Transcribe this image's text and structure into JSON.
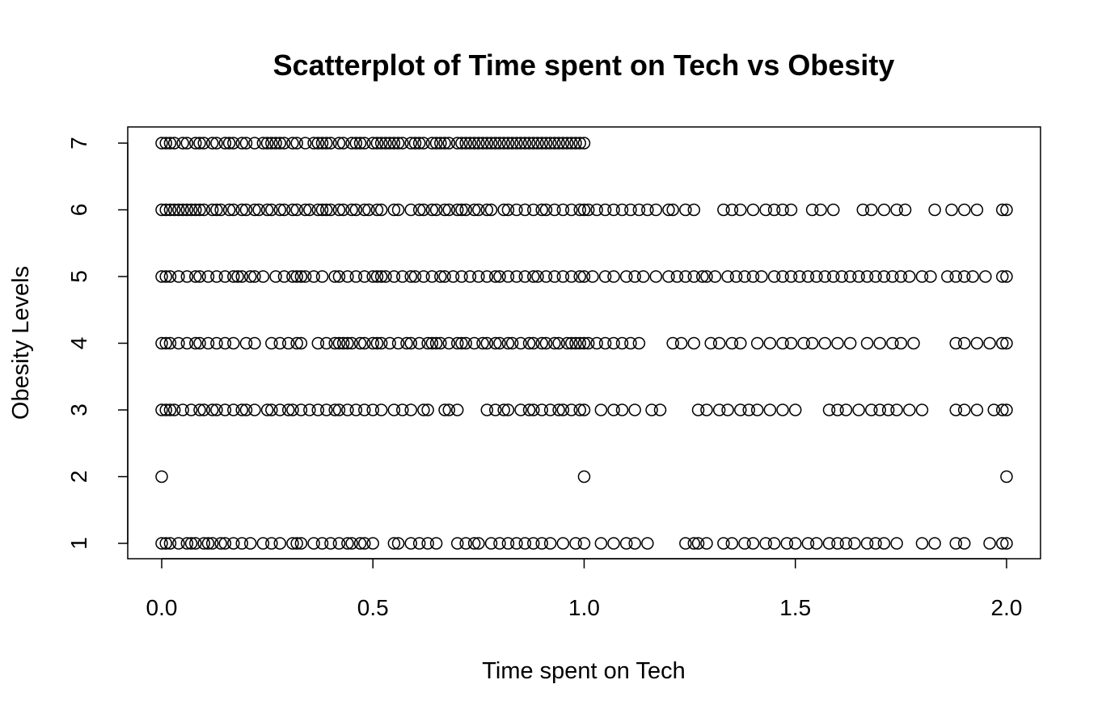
{
  "chart_data": {
    "type": "scatter",
    "title": "Scatterplot of Time spent on Tech vs Obesity",
    "xlabel": "Time spent on Tech",
    "ylabel": "Obesity Levels",
    "xlim": [
      0,
      2
    ],
    "ylim": [
      1,
      7
    ],
    "x_ticks": [
      "0.0",
      "0.5",
      "1.0",
      "1.5",
      "2.0"
    ],
    "x_tick_values": [
      0,
      0.5,
      1,
      1.5,
      2
    ],
    "y_ticks": [
      "1",
      "2",
      "3",
      "4",
      "5",
      "6",
      "7"
    ],
    "y_tick_values": [
      1,
      2,
      3,
      4,
      5,
      6,
      7
    ],
    "grid": false,
    "legend": "none",
    "marker": "open-circle",
    "series": [
      {
        "y": 7,
        "x": [
          0.0,
          0.01,
          0.02,
          0.03,
          0.05,
          0.06,
          0.08,
          0.09,
          0.1,
          0.12,
          0.13,
          0.15,
          0.16,
          0.17,
          0.19,
          0.2,
          0.22,
          0.24,
          0.25,
          0.26,
          0.27,
          0.28,
          0.29,
          0.31,
          0.32,
          0.34,
          0.36,
          0.37,
          0.38,
          0.39,
          0.4,
          0.42,
          0.43,
          0.45,
          0.46,
          0.47,
          0.48,
          0.5,
          0.51,
          0.52,
          0.53,
          0.54,
          0.55,
          0.56,
          0.57,
          0.59,
          0.6,
          0.61,
          0.62,
          0.64,
          0.65,
          0.66,
          0.67,
          0.68,
          0.7,
          0.71,
          0.72,
          0.73,
          0.74,
          0.75,
          0.76,
          0.77,
          0.78,
          0.79,
          0.8,
          0.81,
          0.82,
          0.83,
          0.84,
          0.85,
          0.86,
          0.87,
          0.88,
          0.89,
          0.9,
          0.91,
          0.92,
          0.93,
          0.94,
          0.95,
          0.96,
          0.97,
          0.98,
          0.99,
          1.0
        ]
      },
      {
        "y": 6,
        "x": [
          0.0,
          0.01,
          0.02,
          0.03,
          0.04,
          0.05,
          0.06,
          0.07,
          0.08,
          0.09,
          0.1,
          0.12,
          0.13,
          0.14,
          0.16,
          0.17,
          0.19,
          0.2,
          0.22,
          0.23,
          0.25,
          0.26,
          0.28,
          0.29,
          0.31,
          0.32,
          0.34,
          0.35,
          0.37,
          0.38,
          0.39,
          0.4,
          0.42,
          0.43,
          0.45,
          0.46,
          0.48,
          0.49,
          0.51,
          0.52,
          0.55,
          0.56,
          0.59,
          0.61,
          0.62,
          0.64,
          0.65,
          0.67,
          0.68,
          0.7,
          0.71,
          0.72,
          0.74,
          0.75,
          0.77,
          0.78,
          0.81,
          0.82,
          0.84,
          0.86,
          0.88,
          0.9,
          0.91,
          0.93,
          0.95,
          0.97,
          0.99,
          1.0,
          1.01,
          1.03,
          1.05,
          1.07,
          1.09,
          1.11,
          1.13,
          1.15,
          1.17,
          1.2,
          1.21,
          1.24,
          1.26,
          1.33,
          1.35,
          1.37,
          1.4,
          1.43,
          1.45,
          1.47,
          1.49,
          1.54,
          1.56,
          1.59,
          1.66,
          1.68,
          1.71,
          1.74,
          1.76,
          1.83,
          1.87,
          1.9,
          1.93,
          1.99,
          2.0
        ]
      },
      {
        "y": 5,
        "x": [
          0.0,
          0.01,
          0.02,
          0.04,
          0.06,
          0.08,
          0.09,
          0.11,
          0.13,
          0.15,
          0.17,
          0.18,
          0.19,
          0.21,
          0.22,
          0.24,
          0.27,
          0.29,
          0.31,
          0.32,
          0.33,
          0.34,
          0.36,
          0.38,
          0.41,
          0.42,
          0.44,
          0.46,
          0.48,
          0.5,
          0.51,
          0.52,
          0.53,
          0.55,
          0.57,
          0.59,
          0.6,
          0.62,
          0.64,
          0.66,
          0.67,
          0.69,
          0.71,
          0.73,
          0.75,
          0.77,
          0.79,
          0.8,
          0.82,
          0.84,
          0.86,
          0.88,
          0.89,
          0.91,
          0.93,
          0.95,
          0.97,
          0.99,
          1.0,
          1.02,
          1.05,
          1.07,
          1.1,
          1.12,
          1.14,
          1.17,
          1.2,
          1.22,
          1.24,
          1.26,
          1.28,
          1.29,
          1.31,
          1.34,
          1.36,
          1.38,
          1.4,
          1.42,
          1.45,
          1.47,
          1.49,
          1.51,
          1.53,
          1.55,
          1.57,
          1.59,
          1.61,
          1.63,
          1.65,
          1.67,
          1.69,
          1.71,
          1.73,
          1.75,
          1.77,
          1.8,
          1.82,
          1.86,
          1.88,
          1.9,
          1.92,
          1.95,
          1.99,
          2.0
        ]
      },
      {
        "y": 4,
        "x": [
          0.0,
          0.01,
          0.02,
          0.04,
          0.06,
          0.08,
          0.09,
          0.11,
          0.13,
          0.15,
          0.17,
          0.2,
          0.22,
          0.26,
          0.28,
          0.3,
          0.32,
          0.33,
          0.37,
          0.39,
          0.41,
          0.42,
          0.43,
          0.44,
          0.45,
          0.47,
          0.48,
          0.5,
          0.51,
          0.52,
          0.54,
          0.56,
          0.58,
          0.59,
          0.61,
          0.63,
          0.64,
          0.65,
          0.66,
          0.68,
          0.7,
          0.71,
          0.72,
          0.74,
          0.76,
          0.77,
          0.79,
          0.8,
          0.82,
          0.83,
          0.85,
          0.87,
          0.88,
          0.9,
          0.91,
          0.93,
          0.94,
          0.96,
          0.97,
          0.98,
          0.99,
          1.0,
          1.01,
          1.03,
          1.05,
          1.07,
          1.09,
          1.11,
          1.13,
          1.21,
          1.23,
          1.26,
          1.3,
          1.32,
          1.35,
          1.37,
          1.41,
          1.44,
          1.47,
          1.49,
          1.52,
          1.54,
          1.57,
          1.6,
          1.63,
          1.67,
          1.7,
          1.73,
          1.75,
          1.78,
          1.88,
          1.9,
          1.93,
          1.96,
          1.99,
          2.0
        ]
      },
      {
        "y": 3,
        "x": [
          0.0,
          0.01,
          0.02,
          0.03,
          0.05,
          0.07,
          0.09,
          0.1,
          0.12,
          0.13,
          0.15,
          0.17,
          0.19,
          0.2,
          0.22,
          0.25,
          0.26,
          0.28,
          0.3,
          0.31,
          0.33,
          0.35,
          0.37,
          0.39,
          0.41,
          0.42,
          0.44,
          0.46,
          0.48,
          0.5,
          0.52,
          0.55,
          0.57,
          0.59,
          0.62,
          0.63,
          0.67,
          0.68,
          0.7,
          0.77,
          0.79,
          0.81,
          0.82,
          0.85,
          0.87,
          0.88,
          0.9,
          0.92,
          0.94,
          0.95,
          0.97,
          0.99,
          1.0,
          1.04,
          1.07,
          1.09,
          1.12,
          1.16,
          1.18,
          1.27,
          1.29,
          1.32,
          1.34,
          1.37,
          1.39,
          1.41,
          1.44,
          1.47,
          1.5,
          1.58,
          1.6,
          1.62,
          1.65,
          1.68,
          1.7,
          1.72,
          1.74,
          1.77,
          1.8,
          1.88,
          1.9,
          1.93,
          1.97,
          1.99,
          2.0
        ]
      },
      {
        "y": 2,
        "x": [
          0.0,
          1.0,
          2.0
        ]
      },
      {
        "y": 1,
        "x": [
          0.0,
          0.01,
          0.02,
          0.04,
          0.06,
          0.07,
          0.08,
          0.1,
          0.11,
          0.12,
          0.14,
          0.15,
          0.17,
          0.19,
          0.21,
          0.24,
          0.26,
          0.28,
          0.31,
          0.32,
          0.33,
          0.36,
          0.38,
          0.4,
          0.42,
          0.44,
          0.45,
          0.47,
          0.48,
          0.5,
          0.55,
          0.56,
          0.59,
          0.61,
          0.63,
          0.65,
          0.7,
          0.72,
          0.74,
          0.75,
          0.78,
          0.8,
          0.82,
          0.84,
          0.86,
          0.88,
          0.9,
          0.92,
          0.95,
          0.98,
          1.0,
          1.04,
          1.07,
          1.1,
          1.12,
          1.15,
          1.24,
          1.26,
          1.27,
          1.29,
          1.33,
          1.35,
          1.38,
          1.4,
          1.43,
          1.45,
          1.48,
          1.5,
          1.53,
          1.55,
          1.58,
          1.6,
          1.62,
          1.64,
          1.67,
          1.69,
          1.71,
          1.74,
          1.8,
          1.83,
          1.88,
          1.9,
          1.96,
          1.99,
          2.0
        ]
      }
    ]
  }
}
